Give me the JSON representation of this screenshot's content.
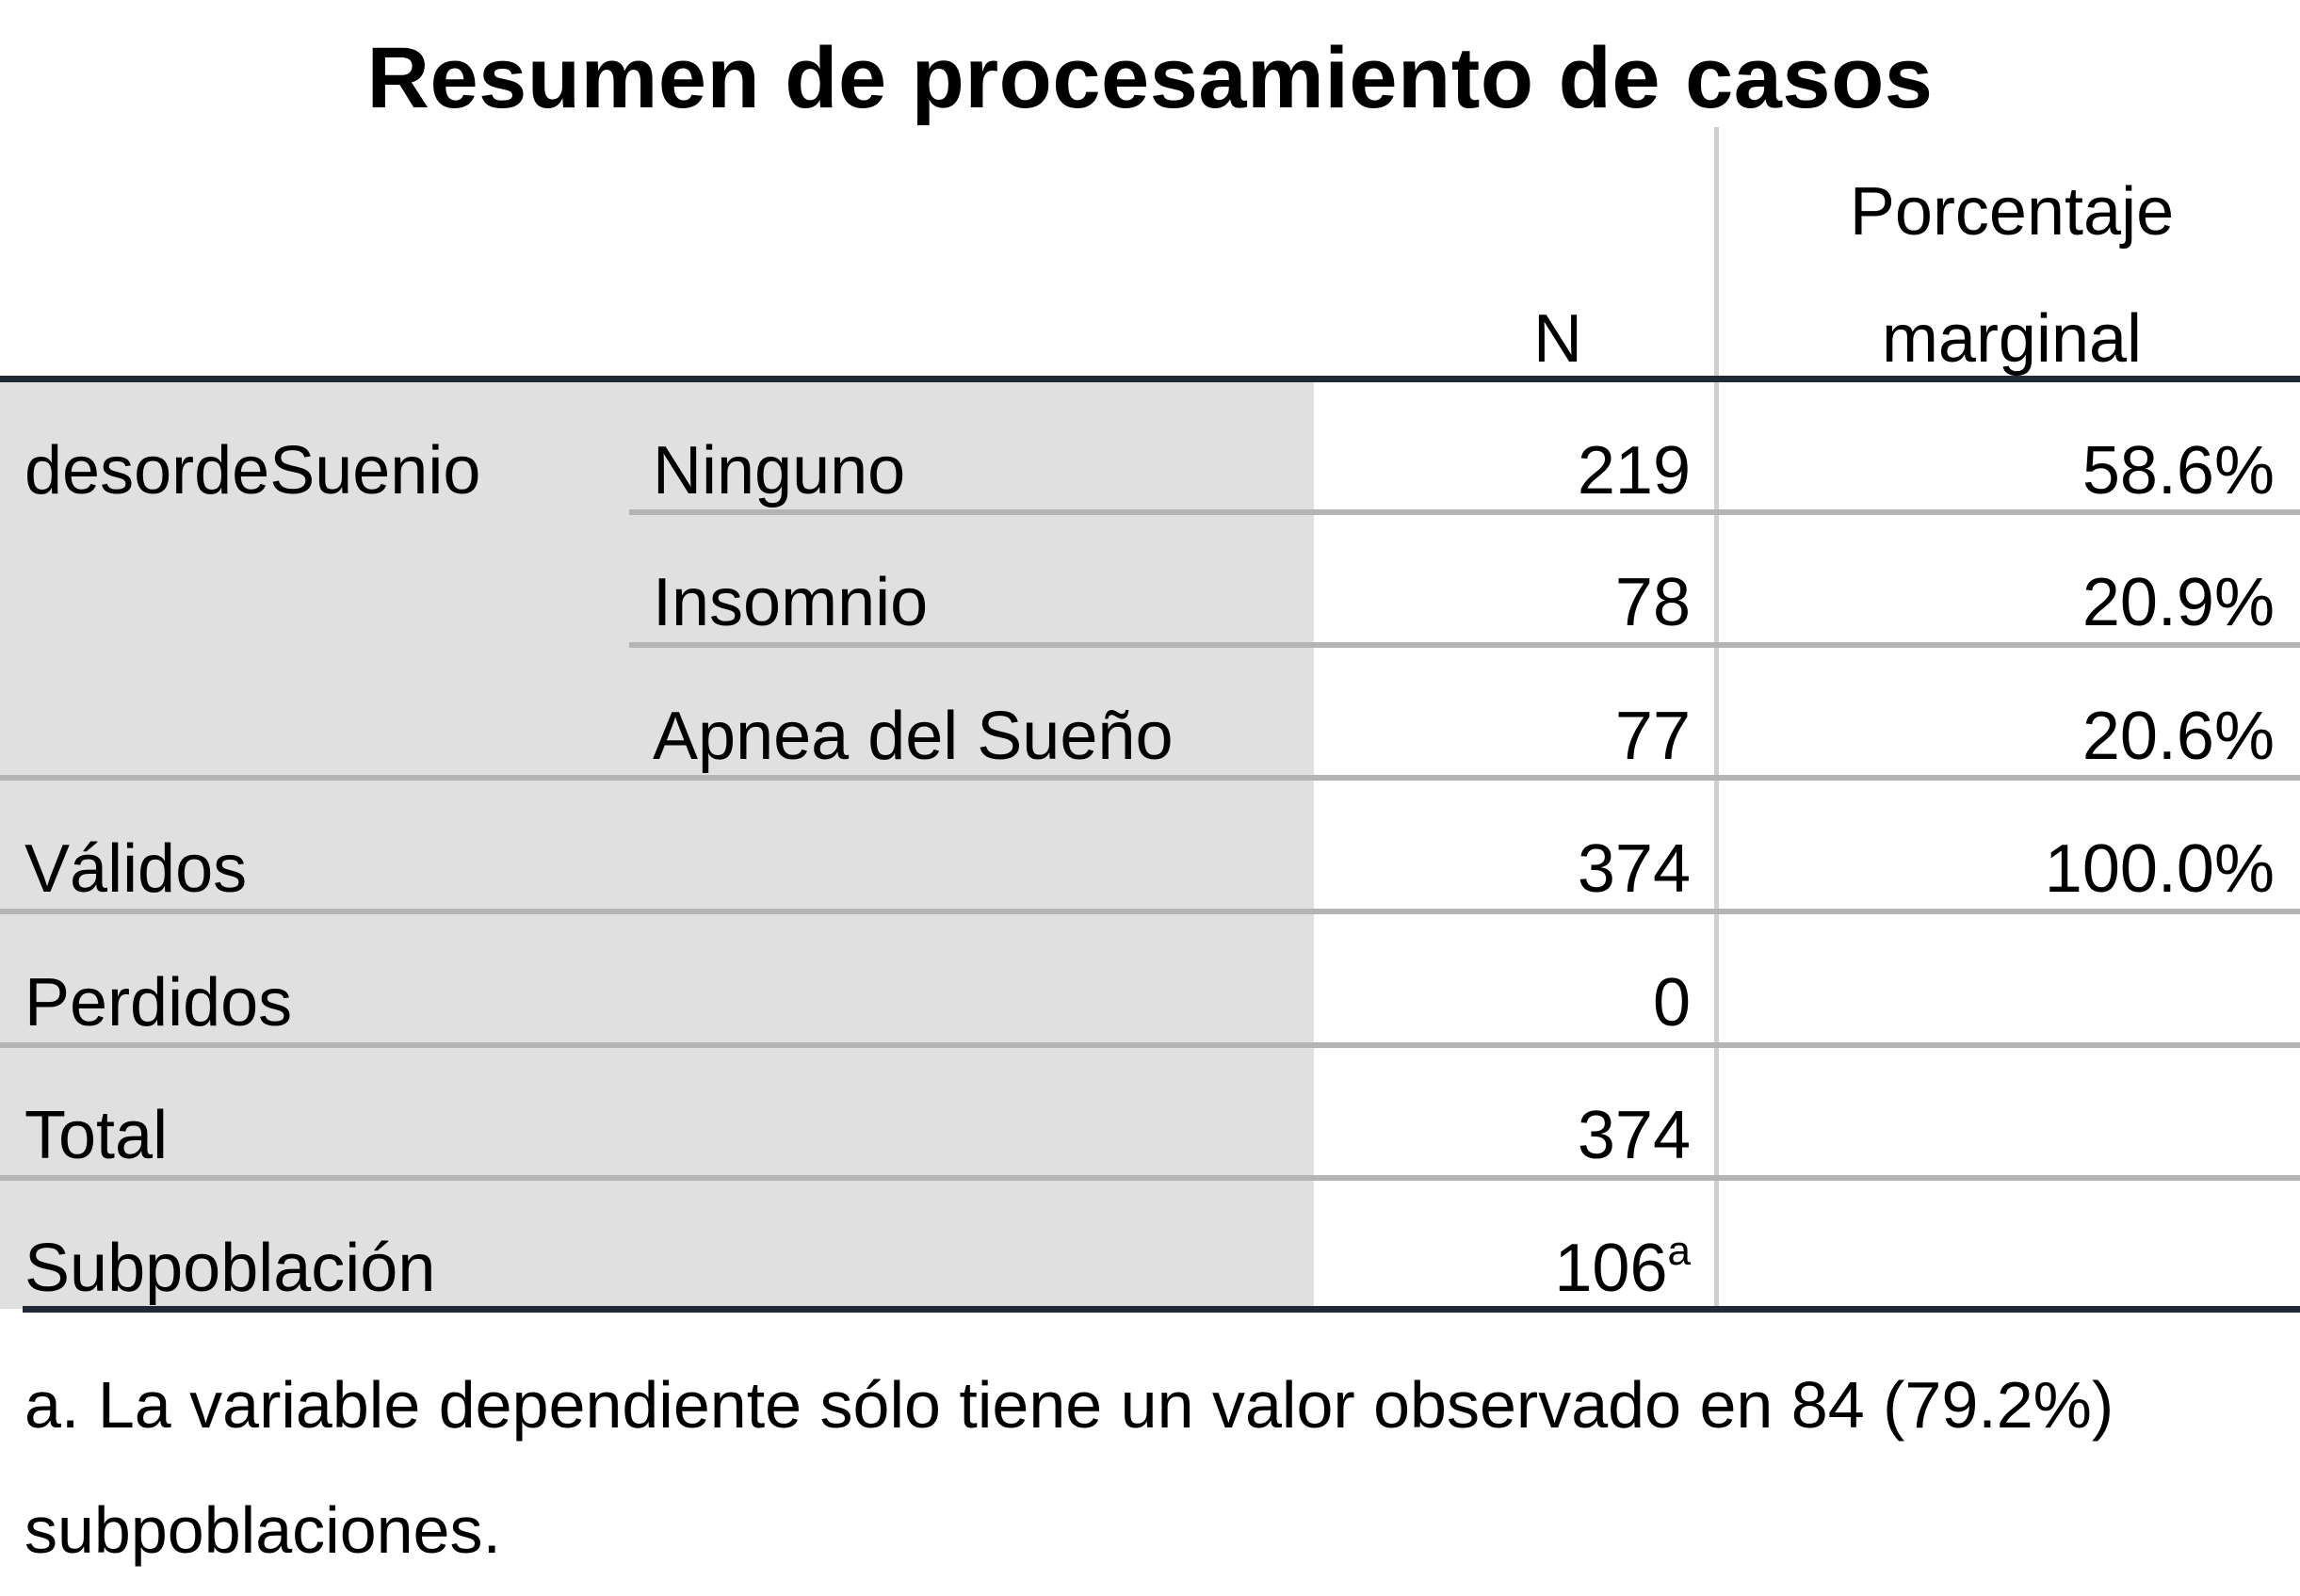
{
  "title": "Resumen de procesamiento de casos",
  "header": {
    "n_label": "N",
    "pct_label_line1": "Porcentaje",
    "pct_label_line2": "marginal"
  },
  "rows": [
    {
      "group": "desordeSuenio",
      "category": "Ninguno",
      "n": "219",
      "pct": "58.6%"
    },
    {
      "group": "",
      "category": "Insomnio",
      "n": "78",
      "pct": "20.9%"
    },
    {
      "group": "",
      "category": "Apnea del Sueño",
      "n": "77",
      "pct": "20.6%"
    },
    {
      "group": "Válidos",
      "category": "",
      "n": "374",
      "pct": "100.0%"
    },
    {
      "group": "Perdidos",
      "category": "",
      "n": "0",
      "pct": ""
    },
    {
      "group": "Total",
      "category": "",
      "n": "374",
      "pct": ""
    },
    {
      "group": "Subpoblación",
      "category": "",
      "n": "106",
      "n_footnote": "a",
      "pct": ""
    }
  ],
  "footnote": {
    "line1": "a. La variable dependiente sólo tiene un valor observado en 84 (79.2%)",
    "line2": "subpoblaciones."
  }
}
